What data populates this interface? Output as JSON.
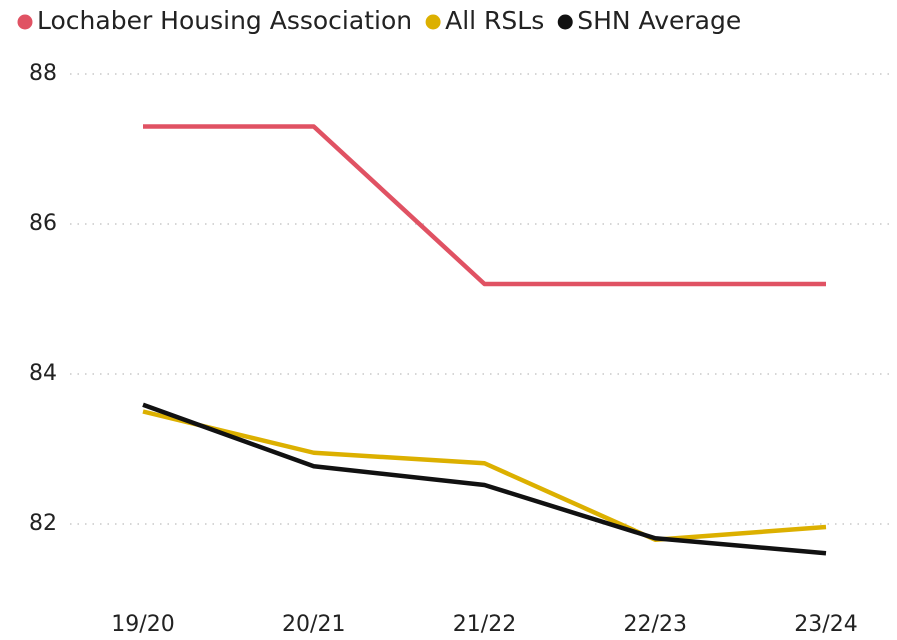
{
  "chart_data": {
    "type": "line",
    "categories": [
      "19/20",
      "20/21",
      "21/22",
      "22/23",
      "23/24"
    ],
    "series": [
      {
        "name": "Lochaber Housing Association",
        "color": "#e05263",
        "values": [
          87.3,
          87.3,
          85.2,
          85.2,
          85.2
        ]
      },
      {
        "name": "All RSLs",
        "color": "#dcb000",
        "values": [
          83.5,
          82.95,
          82.81,
          81.79,
          81.96
        ]
      },
      {
        "name": "SHN Average",
        "color": "#111111",
        "values": [
          83.59,
          82.77,
          82.52,
          81.81,
          81.61
        ]
      }
    ],
    "ylim": [
      81.2,
      88
    ],
    "yticks": [
      82,
      84,
      86,
      88
    ],
    "grid": true,
    "legend": "top"
  }
}
